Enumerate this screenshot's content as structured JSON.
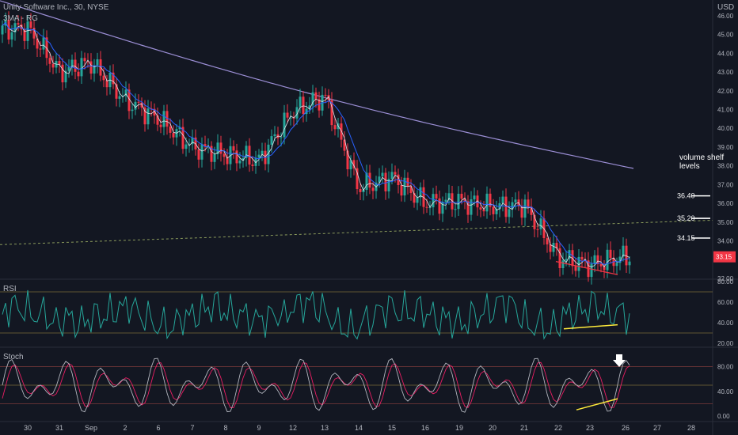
{
  "header": {
    "symbol_title": "Unity Software Inc., 30, NYSE",
    "indicator_label": "3MA - RG",
    "currency": "USD"
  },
  "price_axis": {
    "ticks": [
      "46.00",
      "45.00",
      "44.00",
      "43.00",
      "42.00",
      "41.00",
      "40.00",
      "39.00",
      "38.00",
      "37.00",
      "36.00",
      "35.00",
      "34.00",
      "33.00",
      "32.00"
    ],
    "last_price": "33.15",
    "last_price_color": "#f23645"
  },
  "annotations": {
    "volume_shelf": "volume shelf levels",
    "levels": [
      "36.40",
      "35.20",
      "34.15"
    ]
  },
  "rsi_panel": {
    "label": "RSI",
    "ticks": [
      "80.00",
      "60.00",
      "40.00",
      "20.00"
    ]
  },
  "stoch_panel": {
    "label": "Stoch",
    "ticks": [
      "80.00",
      "40.00",
      "0.00"
    ]
  },
  "time_axis": {
    "labels": [
      "30",
      "31",
      "Sep",
      "2",
      "6",
      "7",
      "8",
      "9",
      "12",
      "13",
      "14",
      "15",
      "16",
      "19",
      "20",
      "21",
      "22",
      "23",
      "26",
      "27",
      "28"
    ]
  },
  "chart_data": {
    "type": "line",
    "title": "Unity Software Inc., 30, NYSE",
    "ylabel": "USD",
    "ylim": [
      32,
      46.5
    ],
    "x": [
      "30",
      "31",
      "Sep",
      "2",
      "6",
      "7",
      "8",
      "9",
      "12",
      "13",
      "14",
      "15",
      "16",
      "19",
      "20",
      "21",
      "22",
      "23",
      "26"
    ],
    "series": [
      {
        "values": [
          45.3,
          43.0,
          43.5,
          41.5,
          40.5,
          39.0,
          38.6,
          38.3,
          40.9,
          41.7,
          36.8,
          37.4,
          36.0,
          36.1,
          35.8,
          35.9,
          33.1,
          32.7,
          33.15
        ]
      }
    ],
    "rsi": {
      "ylim": [
        20,
        80
      ],
      "levels": [
        70,
        30
      ]
    },
    "stoch": {
      "ylim": [
        0,
        100
      ],
      "levels": [
        80,
        50,
        20
      ]
    },
    "colors": {
      "up": "#26a69a",
      "down": "#f23645",
      "ma_fast": "#e0e3eb",
      "ma_mid": "#2962ff",
      "ma_slow": "#9c8fd6",
      "rsi": "#26a69a",
      "stoch_k": "#b2b5be",
      "stoch_d": "#e91e63",
      "trendline": "#ffeb3b"
    }
  }
}
